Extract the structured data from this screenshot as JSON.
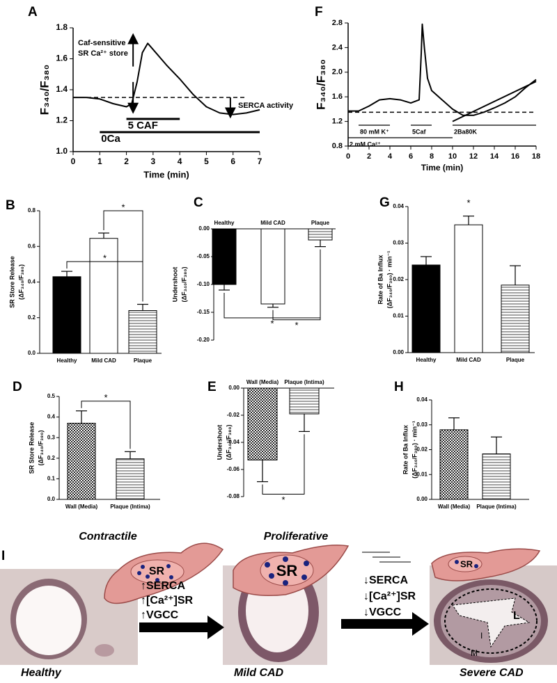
{
  "chart_data": [
    {
      "type": "line",
      "panel": "A",
      "x_label": "Time (min)",
      "y_label": "F₃₄₀/F₃₈₀",
      "xlim": [
        0,
        7
      ],
      "xticks": [
        0,
        1,
        2,
        3,
        4,
        5,
        6,
        7
      ],
      "ylim": [
        1,
        1.8
      ],
      "yticks": [
        {
          "value": 1,
          "label": "1.0"
        },
        1.2,
        1.4,
        1.6,
        1.8
      ],
      "x": [
        0,
        0.5,
        1,
        1.5,
        2,
        2.2,
        2.4,
        2.6,
        2.8,
        3,
        3.5,
        4,
        4.5,
        5,
        5.5,
        6,
        6.5,
        7
      ],
      "series": [
        {
          "color": "#000000",
          "values": [
            1.35,
            1.35,
            1.34,
            1.31,
            1.29,
            1.31,
            1.45,
            1.64,
            1.7,
            1.66,
            1.56,
            1.47,
            1.37,
            1.29,
            1.25,
            1.24,
            1.25,
            1.27
          ]
        }
      ],
      "reference_line": 1.35,
      "stimuli": [
        {
          "label": "5 CAF",
          "start": 2,
          "end": 4
        },
        {
          "label": "0Ca",
          "start": 1,
          "end": 7
        }
      ],
      "annotations": [
        "Caf-sensitive",
        "SR Ca²⁺ store",
        "SERCA activity"
      ]
    },
    {
      "type": "line",
      "panel": "F",
      "x_label": "Time (min)",
      "y_label": "F₃₄₀/F₃₈₀",
      "xlim": [
        0,
        18
      ],
      "xticks": [
        0,
        2,
        4,
        6,
        8,
        10,
        12,
        14,
        16,
        18
      ],
      "ylim": [
        0.8,
        2.8
      ],
      "yticks": [
        0.8,
        1.2,
        1.6,
        {
          "value": 2,
          "label": "2.0"
        },
        2.4,
        2.8
      ],
      "x": [
        0,
        1,
        2,
        3,
        4,
        5,
        6,
        6.8,
        7,
        7.1,
        7.3,
        7.6,
        8,
        9,
        10,
        11,
        12,
        13,
        14,
        15,
        16,
        17,
        18
      ],
      "series": [
        {
          "color": "#000000",
          "values": [
            1.37,
            1.37,
            1.45,
            1.55,
            1.57,
            1.55,
            1.5,
            1.55,
            2.3,
            2.78,
            2.4,
            1.9,
            1.7,
            1.55,
            1.4,
            1.3,
            1.3,
            1.35,
            1.42,
            1.5,
            1.6,
            1.75,
            1.88
          ]
        },
        {
          "color": "#000000",
          "x": [
            10,
            18
          ],
          "values": [
            1.2,
            1.85
          ]
        }
      ],
      "reference_line": 1.35,
      "stimuli": [
        {
          "label": "80 mM K⁺",
          "start": 1,
          "end": 4
        },
        {
          "label": "5Caf",
          "start": 6,
          "end": 8
        },
        {
          "label": "2Ba80K",
          "start": 10,
          "end": 18
        },
        {
          "label": "2 mM Ca²⁺",
          "start": 0,
          "end": 10
        }
      ],
      "annotations": []
    },
    {
      "type": "bar",
      "panel": "B",
      "y_label": [
        "SR Store Release",
        "(ΔF₃₄₀/F₃₈₀)"
      ],
      "categories": [
        "Healthy",
        "Mild CAD",
        "Plaque"
      ],
      "values": [
        0.43,
        0.645,
        0.24
      ],
      "errors": [
        0.03,
        0.03,
        0.035
      ],
      "fills": [
        "#000000",
        "#ffffff",
        "horizontal-stripes"
      ],
      "ylim": [
        0,
        0.8
      ],
      "yticks": [
        {
          "value": 0,
          "label": "0.0"
        },
        0.2,
        0.4,
        0.6,
        0.8
      ],
      "significance": [
        {
          "text": "*",
          "groups": [
            "Healthy",
            "Plaque"
          ]
        },
        {
          "text": "*",
          "groups": [
            "Mild CAD",
            "Plaque"
          ]
        }
      ]
    },
    {
      "type": "bar",
      "panel": "C",
      "y_label": [
        "Undershoot",
        "(ΔF₃₄₀/F₃₈₀)"
      ],
      "categories": [
        "Healthy",
        "Mild CAD",
        "Plaque"
      ],
      "values": [
        -0.1,
        -0.135,
        -0.02
      ],
      "errors": [
        0.01,
        0.006,
        0.012
      ],
      "fills": [
        "#000000",
        "#ffffff",
        "horizontal-stripes"
      ],
      "ylim": [
        -0.2,
        0
      ],
      "yticks": [
        {
          "value": 0,
          "label": "0.00"
        },
        -0.05,
        {
          "value": -0.1,
          "label": "-0.10"
        },
        -0.15,
        {
          "value": -0.2,
          "label": "-0.20"
        }
      ],
      "significance": [
        {
          "text": "*",
          "groups": [
            "Mild CAD",
            "Plaque"
          ]
        },
        {
          "text": "*",
          "groups": [
            "Healthy",
            "Plaque"
          ]
        }
      ]
    },
    {
      "type": "bar",
      "panel": "G",
      "y_label": [
        "Rate of Ba Influx",
        "(ΔF₃₄₀/F₃₈₀) · min⁻¹"
      ],
      "categories": [
        "Healthy",
        "Mild CAD",
        "Plaque"
      ],
      "values": [
        0.024,
        0.035,
        0.0185
      ],
      "errors": [
        0.0023,
        0.0024,
        0.0053
      ],
      "fills": [
        "#000000",
        "#ffffff",
        "horizontal-stripes"
      ],
      "ylim": [
        0,
        0.04
      ],
      "yticks": [
        {
          "value": 0,
          "label": "0.00"
        },
        0.01,
        0.02,
        0.03,
        0.04
      ],
      "significance": [
        {
          "text": "*",
          "groups": [
            "Mild CAD"
          ]
        }
      ]
    },
    {
      "type": "bar",
      "panel": "D",
      "y_label": [
        "SR Store Release",
        "(ΔF₃₄₀/F₃₈₀)"
      ],
      "categories": [
        "Wall (Media)",
        "Plaque (Intima)"
      ],
      "values": [
        0.37,
        0.197
      ],
      "errors": [
        0.06,
        0.035
      ],
      "fills": [
        "checker",
        "horizontal-stripes"
      ],
      "ylim": [
        0,
        0.5
      ],
      "yticks": [
        {
          "value": 0,
          "label": "0.0"
        },
        0.1,
        0.2,
        0.3,
        0.4,
        0.5
      ],
      "significance": [
        {
          "text": "*",
          "groups": [
            "Wall (Media)",
            "Plaque (Intima)"
          ]
        }
      ]
    },
    {
      "type": "bar",
      "panel": "E",
      "y_label": [
        "Undershoot",
        "(ΔF₃₄₀/F₃₈₀)"
      ],
      "categories": [
        "Wall (Media)",
        "Plaque (Intima)"
      ],
      "values": [
        -0.053,
        -0.019
      ],
      "errors": [
        0.016,
        0.013
      ],
      "fills": [
        "checker",
        "horizontal-stripes"
      ],
      "ylim": [
        -0.08,
        0
      ],
      "yticks": [
        {
          "value": 0,
          "label": "0.00"
        },
        -0.02,
        -0.04,
        -0.06,
        -0.08
      ],
      "significance": [
        {
          "text": "*",
          "groups": [
            "Wall (Media)",
            "Plaque (Intima)"
          ]
        }
      ]
    },
    {
      "type": "bar",
      "panel": "H",
      "y_label": [
        "Rate of Ba Influx",
        "(ΔF₃₄₀/F₃₈₀) · min⁻¹"
      ],
      "categories": [
        "Wall (Media)",
        "Plaque (Intima)"
      ],
      "values": [
        0.028,
        0.0183
      ],
      "errors": [
        0.0048,
        0.0068
      ],
      "fills": [
        "checker",
        "horizontal-stripes"
      ],
      "ylim": [
        0,
        0.04
      ],
      "yticks": [
        {
          "value": 0,
          "label": "0.00"
        },
        0.01,
        0.02,
        0.03,
        0.04
      ],
      "significance": []
    }
  ],
  "diagram": {
    "panel": "I",
    "phenotypes": [
      "Contractile",
      "Proliferative"
    ],
    "stages": [
      "Healthy",
      "Mild CAD",
      "Severe CAD"
    ],
    "organelle": [
      "SR",
      "SR",
      "SR"
    ],
    "increase": [
      "↑SERCA",
      "↑[Ca²⁺]SR",
      "↑VGCC"
    ],
    "decrease": [
      "↓SERCA",
      "↓[Ca²⁺]SR",
      "↓VGCC"
    ],
    "regions": [
      "L",
      "I",
      "M"
    ]
  }
}
